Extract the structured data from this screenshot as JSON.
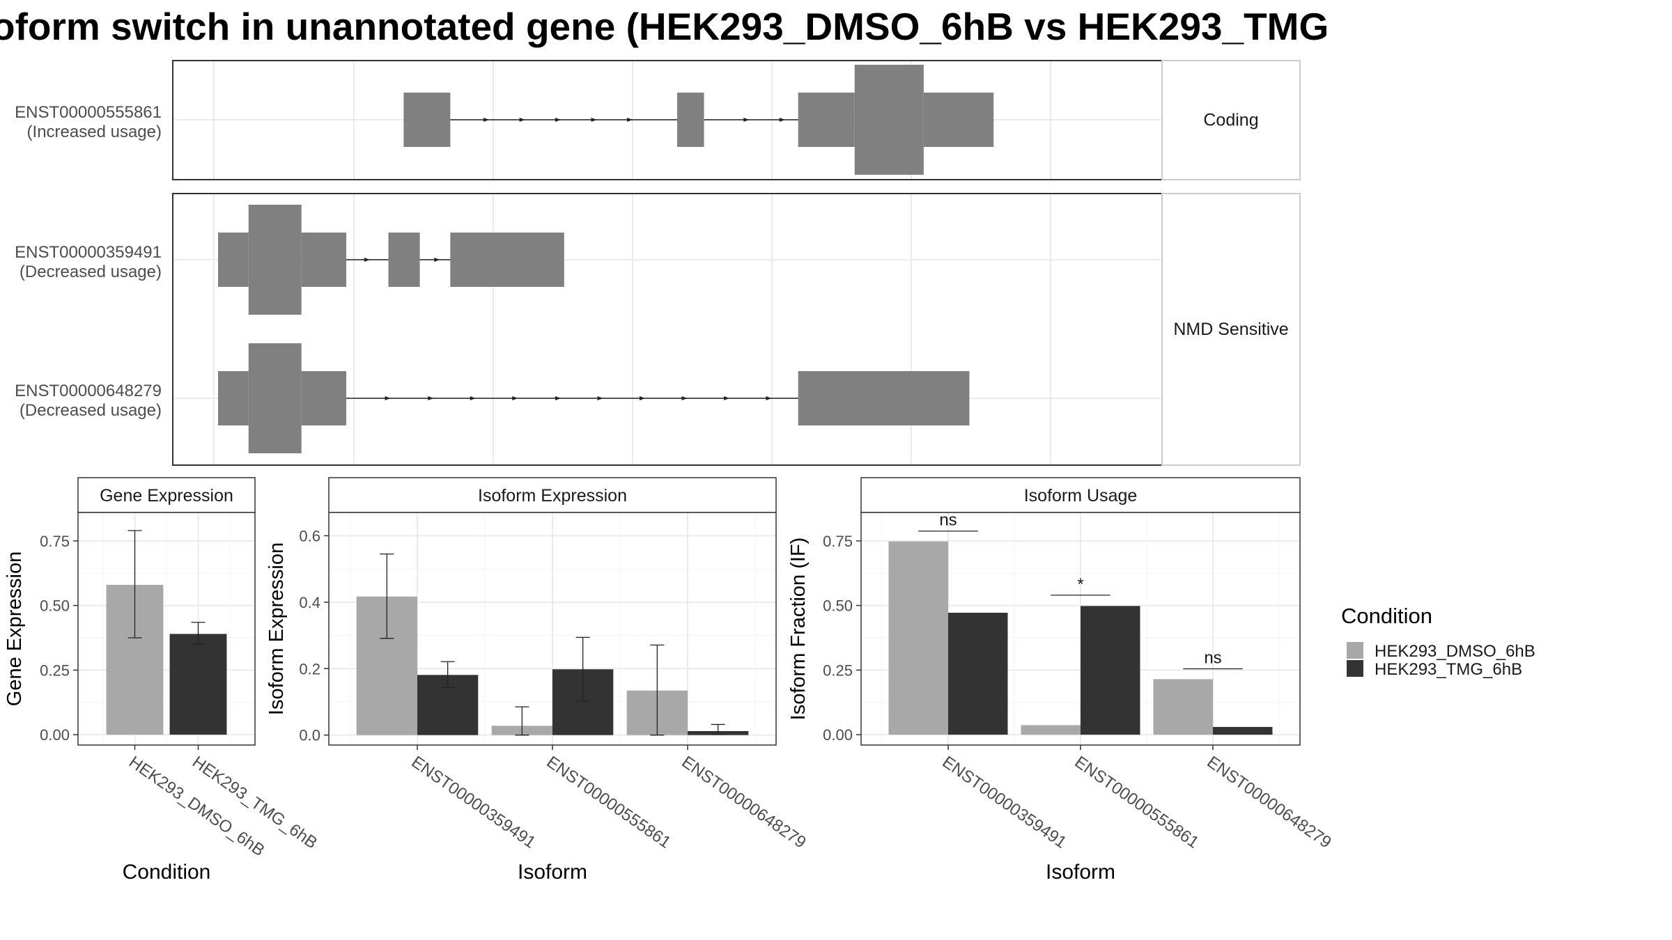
{
  "title": "oform switch in unannotated gene (HEK293_DMSO_6hB vs HEK293_TMG",
  "colors": {
    "dmso": "#a8a8a8",
    "tmg": "#333333",
    "exon": "#808080",
    "grid": "#ebebeb",
    "panel_border": "#333333",
    "strip_border": "#cccccc"
  },
  "chart_data": [
    {
      "type": "gene_structure",
      "groups": [
        {
          "label": "Coding",
          "transcripts": [
            {
              "id": "ENST00000555861",
              "usage": "(Increased usage)",
              "exons": [
                [
                  0.207,
                  0.259,
                  "utr"
                ],
                [
                  0.512,
                  0.542,
                  "utr"
                ],
                [
                  0.647,
                  0.71,
                  "utr"
                ],
                [
                  0.71,
                  0.787,
                  "cds"
                ],
                [
                  0.787,
                  0.865,
                  "utr"
                ]
              ],
              "arrows": [
                0.3,
                0.34,
                0.38,
                0.42,
                0.46,
                0.59,
                0.63
              ]
            }
          ]
        },
        {
          "label": "NMD Sensitive",
          "transcripts": [
            {
              "id": "ENST00000359491",
              "usage": "(Decreased usage)",
              "exons": [
                [
                  0.0,
                  0.034,
                  "utr"
                ],
                [
                  0.034,
                  0.093,
                  "cds"
                ],
                [
                  0.093,
                  0.143,
                  "utr"
                ],
                [
                  0.19,
                  0.225,
                  "utr"
                ],
                [
                  0.259,
                  0.386,
                  "utr"
                ]
              ],
              "arrows": [
                0.167,
                0.245
              ]
            },
            {
              "id": "ENST00000648279",
              "usage": "(Decreased usage)",
              "exons": [
                [
                  0.0,
                  0.034,
                  "utr"
                ],
                [
                  0.034,
                  0.093,
                  "cds"
                ],
                [
                  0.093,
                  0.143,
                  "utr"
                ],
                [
                  0.647,
                  0.838,
                  "utr"
                ]
              ],
              "arrows": [
                0.19,
                0.238,
                0.285,
                0.332,
                0.38,
                0.427,
                0.474,
                0.521,
                0.568,
                0.615
              ]
            }
          ]
        }
      ]
    },
    {
      "type": "bar",
      "title": "Gene Expression",
      "xlabel": "Condition",
      "ylabel": "Gene Expression",
      "ylim": [
        -0.04,
        0.86
      ],
      "yticks": [
        "0.00",
        "0.25",
        "0.50",
        "0.75"
      ],
      "categories": [
        "HEK293_DMSO_6hB",
        "HEK293_TMG_6hB"
      ],
      "values": [
        0.58,
        0.39
      ],
      "err_low": [
        0.375,
        0.35
      ],
      "err_high": [
        0.79,
        0.435
      ],
      "grid": true
    },
    {
      "type": "bar",
      "title": "Isoform Expression",
      "xlabel": "Isoform",
      "ylabel": "Isoform Expression",
      "ylim": [
        -0.03,
        0.67
      ],
      "yticks": [
        "0.0",
        "0.2",
        "0.4",
        "0.6"
      ],
      "categories": [
        "ENST00000359491",
        "ENST00000555861",
        "ENST00000648279"
      ],
      "series": [
        {
          "name": "HEK293_DMSO_6hB",
          "values": [
            0.417,
            0.028,
            0.134
          ],
          "err_low": [
            0.291,
            0.0,
            0.0
          ],
          "err_high": [
            0.545,
            0.085,
            0.271
          ]
        },
        {
          "name": "HEK293_TMG_6hB",
          "values": [
            0.181,
            0.198,
            0.012
          ],
          "err_low": [
            0.143,
            0.102,
            0.002
          ],
          "err_high": [
            0.221,
            0.294,
            0.032
          ]
        }
      ],
      "grid": true
    },
    {
      "type": "bar",
      "title": "Isoform Usage",
      "xlabel": "Isoform",
      "ylabel": "Isoform Fraction (IF)",
      "ylim": [
        -0.04,
        0.86
      ],
      "yticks": [
        "0.00",
        "0.25",
        "0.50",
        "0.75"
      ],
      "categories": [
        "ENST00000359491",
        "ENST00000555861",
        "ENST00000648279"
      ],
      "series": [
        {
          "name": "HEK293_DMSO_6hB",
          "values": [
            0.748,
            0.037,
            0.215
          ]
        },
        {
          "name": "HEK293_TMG_6hB",
          "values": [
            0.472,
            0.498,
            0.03
          ]
        }
      ],
      "significance": [
        {
          "label": "ns",
          "y": 0.788
        },
        {
          "label": "*",
          "y": 0.54
        },
        {
          "label": "ns",
          "y": 0.255
        }
      ],
      "grid": true
    }
  ],
  "legend": {
    "title": "Condition",
    "entries": [
      "HEK293_DMSO_6hB",
      "HEK293_TMG_6hB"
    ],
    "placement": "right"
  }
}
